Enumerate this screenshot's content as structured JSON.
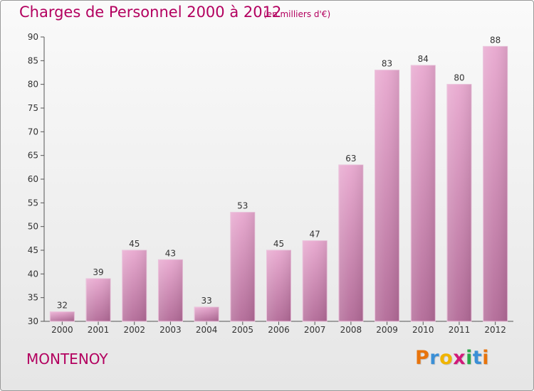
{
  "header": {
    "title": "Charges de Personnel 2000 à 2012",
    "subtitle": "(en milliers d'€)"
  },
  "footer": {
    "commune": "MONTENOY",
    "logo_letters": [
      "P",
      "r",
      "o",
      "x",
      "i",
      "t",
      "i"
    ],
    "logo_colors": [
      "#e8740c",
      "#3b8fd6",
      "#f0b400",
      "#d11a7a",
      "#2aa84a",
      "#3b8fd6",
      "#e8740c"
    ]
  },
  "colors": {
    "title": "#b3005f",
    "bar": "#d98fbd"
  },
  "chart_data": {
    "type": "bar",
    "title": "Charges de Personnel 2000 à 2012",
    "categories": [
      "2000",
      "2001",
      "2002",
      "2003",
      "2004",
      "2005",
      "2006",
      "2007",
      "2008",
      "2009",
      "2010",
      "2011",
      "2012"
    ],
    "values": [
      32,
      39,
      45,
      43,
      33,
      53,
      45,
      47,
      63,
      83,
      84,
      80,
      88
    ],
    "ylim": [
      30,
      90
    ],
    "yticks": [
      30,
      35,
      40,
      45,
      50,
      55,
      60,
      65,
      70,
      75,
      80,
      85,
      90
    ],
    "grid": false,
    "data_labels": true
  }
}
